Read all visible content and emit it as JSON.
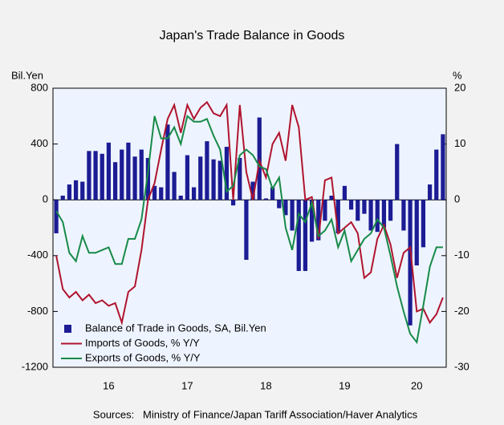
{
  "chart_data": {
    "type": "bar_line",
    "title": "Japan's Trade Balance in Goods",
    "y_axis_label": "Bil.Yen",
    "y2_axis_label": "%",
    "source": "Sources:   Ministry of Finance/Japan Tariff Association/Haver Analytics",
    "categories": [
      null,
      null,
      null,
      null,
      null,
      null,
      null,
      null,
      "16",
      null,
      null,
      null,
      null,
      null,
      null,
      null,
      null,
      null,
      null,
      null,
      "17",
      null,
      null,
      null,
      null,
      null,
      null,
      null,
      null,
      null,
      null,
      null,
      "18",
      null,
      null,
      null,
      null,
      null,
      null,
      null,
      null,
      null,
      null,
      null,
      "19",
      null,
      null,
      null,
      null,
      null,
      null,
      null,
      null,
      null,
      null,
      "20",
      null,
      null,
      null,
      null
    ],
    "ylim": [
      -1200,
      800
    ],
    "yticks": [
      -1200,
      -800,
      -400,
      0,
      400,
      800
    ],
    "y2lim": [
      -30,
      20
    ],
    "y2ticks": [
      -30,
      -20,
      -10,
      0,
      10,
      20
    ],
    "legend": "lower left",
    "series": [
      {
        "name": "Balance of Trade in Goods, SA, Bil.Yen",
        "type": "bar",
        "axis": "y",
        "color": "#1c1c94",
        "values": [
          -240,
          30,
          110,
          140,
          130,
          350,
          350,
          330,
          410,
          270,
          360,
          410,
          310,
          360,
          300,
          100,
          90,
          540,
          200,
          30,
          320,
          90,
          310,
          420,
          290,
          280,
          380,
          -40,
          300,
          -430,
          130,
          590,
          10,
          90,
          -60,
          -110,
          -220,
          -510,
          -510,
          -300,
          -290,
          -150,
          30,
          -240,
          100,
          -70,
          -150,
          -100,
          -220,
          -230,
          -200,
          -150,
          400,
          -220,
          -900,
          -470,
          -340,
          110,
          360,
          470
        ]
      },
      {
        "name": "Imports of Goods, % Y/Y",
        "type": "line",
        "axis": "y2",
        "color": "#b0142e",
        "values": [
          -10,
          -16,
          -17.5,
          -16.5,
          -18,
          -17,
          -18.5,
          -18,
          -19,
          -18.5,
          -22,
          -16.5,
          -15.5,
          -9,
          0,
          3,
          9,
          14.5,
          17,
          12,
          17,
          14.5,
          16.5,
          17.5,
          15.5,
          15,
          17,
          0,
          17,
          5,
          0,
          7,
          4,
          10,
          12,
          7,
          17,
          13,
          0,
          0.5,
          -7,
          3.5,
          4,
          -6,
          -5,
          -4,
          -6,
          -14,
          -13,
          -7,
          -4.5,
          -8,
          -14,
          -9.5,
          -8.5,
          -20,
          -19.5,
          -22,
          -20.5,
          -17.5
        ]
      },
      {
        "name": "Exports of Goods, % Y/Y",
        "type": "line",
        "axis": "y2",
        "color": "#178a48",
        "values": [
          -2,
          -4,
          -9.5,
          -11,
          -6.5,
          -9.5,
          -9.5,
          -9,
          -8.5,
          -11.5,
          -11.5,
          -7,
          -7,
          -3.5,
          5,
          15,
          11,
          11,
          13,
          10,
          15,
          14,
          14,
          14.5,
          11.5,
          9,
          1.5,
          2.5,
          8,
          9,
          8,
          6,
          5.5,
          2,
          4,
          -5,
          -9,
          -2.5,
          -4,
          -0.5,
          -6.5,
          -5.5,
          -3.5,
          -8.5,
          -5.5,
          -11,
          -9,
          -7,
          -6,
          -3.5,
          -5,
          -10,
          -15.5,
          -20,
          -24,
          -25.5,
          -19,
          -12,
          -8.5,
          -8.5
        ]
      }
    ]
  }
}
